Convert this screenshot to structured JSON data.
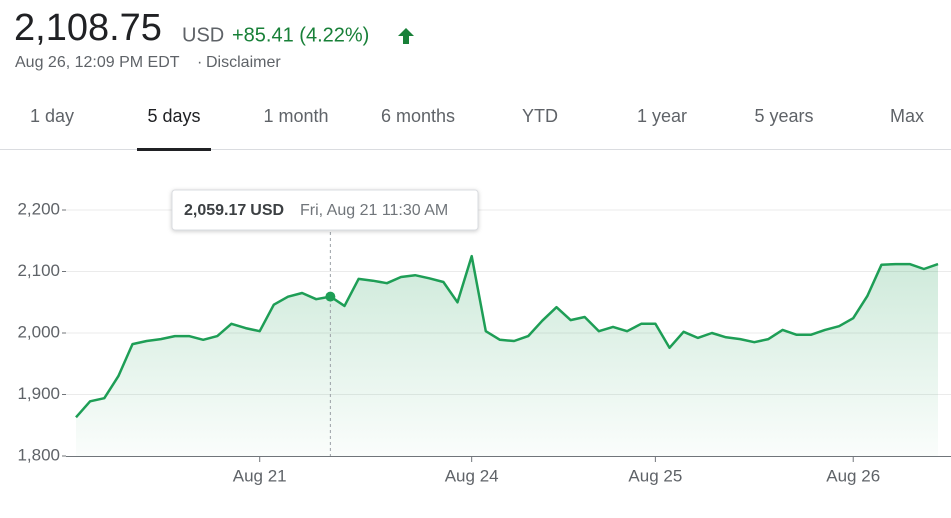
{
  "header": {
    "price": "2,108.75",
    "currency": "USD",
    "change": "+85.41 (4.22%)",
    "timestamp": "Aug 26, 12:09 PM EDT",
    "separator": "·",
    "disclaimer": "Disclaimer"
  },
  "tabs": [
    "1 day",
    "5 days",
    "1 month",
    "6 months",
    "YTD",
    "1 year",
    "5 years",
    "Max"
  ],
  "selected_tab": "5 days",
  "chart_data": {
    "type": "line",
    "categories": [
      null,
      null,
      null,
      null,
      null,
      null,
      null,
      null,
      null,
      null,
      null,
      null,
      null,
      "Aug 21",
      null,
      null,
      null,
      null,
      null,
      null,
      null,
      null,
      null,
      null,
      null,
      null,
      null,
      null,
      "Aug 24",
      null,
      null,
      null,
      null,
      null,
      null,
      null,
      null,
      null,
      null,
      null,
      null,
      "Aug 25",
      null,
      null,
      null,
      null,
      null,
      null,
      null,
      null,
      null,
      null,
      null,
      null,
      null,
      "Aug 26",
      null,
      null,
      null,
      null,
      null,
      null
    ],
    "series": [
      {
        "name": "Price",
        "color": "#1e9e56",
        "values": [
          1863,
          1889,
          1894,
          1930,
          1982,
          1987,
          1990,
          1995,
          1995,
          1989,
          1995,
          2015,
          2008,
          2003,
          2046,
          2059,
          2065,
          2055,
          2059.17,
          2044,
          2088,
          2085,
          2081,
          2091,
          2094,
          2089,
          2083,
          2050,
          2125,
          2003,
          1989,
          1987,
          1995,
          2020,
          2042,
          2021,
          2026,
          2003,
          2010,
          2003,
          2015,
          2015,
          1976,
          2002,
          1992,
          2000,
          1993,
          1990,
          1985,
          1990,
          2005,
          1997,
          1997,
          2005,
          2011,
          2024,
          2060,
          2111,
          2112,
          2112,
          2104,
          2112
        ]
      }
    ],
    "ylim": [
      1800,
      2200
    ],
    "yticks": [
      {
        "value": 1800,
        "label": "1,800"
      },
      {
        "value": 1900,
        "label": "1,900"
      },
      {
        "value": 2000,
        "label": "2,000"
      },
      {
        "value": 2100,
        "label": "2,100"
      },
      {
        "value": 2200,
        "label": "2,200"
      }
    ],
    "grid": true,
    "tooltip": {
      "price": "2,059.17",
      "currency": "USD",
      "date": "Fri, Aug 21 11:30 AM"
    }
  }
}
